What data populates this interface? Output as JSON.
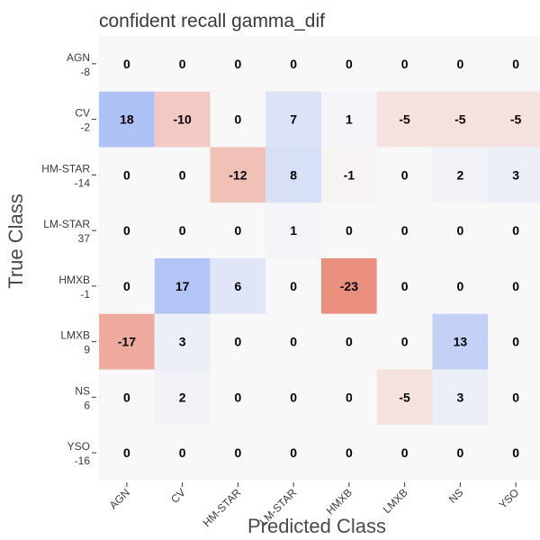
{
  "chart_data": {
    "type": "heatmap",
    "title": "confident recall gamma_dif",
    "xlabel": "Predicted Class",
    "ylabel": "True Class",
    "x_categories": [
      "AGN",
      "CV",
      "HM-STAR",
      "LM-STAR",
      "HMXB",
      "LMXB",
      "NS",
      "YSO"
    ],
    "y_categories": [
      {
        "name": "AGN",
        "value": "-8"
      },
      {
        "name": "CV",
        "value": "-2"
      },
      {
        "name": "HM-STAR",
        "value": "-14"
      },
      {
        "name": "LM-STAR",
        "value": "37"
      },
      {
        "name": "HMXB",
        "value": "-1"
      },
      {
        "name": "LMXB",
        "value": "9"
      },
      {
        "name": "NS",
        "value": "6"
      },
      {
        "name": "YSO",
        "value": "-16"
      }
    ],
    "values": [
      [
        0,
        0,
        0,
        0,
        0,
        0,
        0,
        0
      ],
      [
        18,
        -10,
        0,
        7,
        1,
        -5,
        -5,
        -5
      ],
      [
        0,
        0,
        -12,
        8,
        -1,
        0,
        2,
        3
      ],
      [
        0,
        0,
        0,
        1,
        0,
        0,
        0,
        0
      ],
      [
        0,
        17,
        6,
        0,
        -23,
        0,
        0,
        0
      ],
      [
        -17,
        3,
        0,
        0,
        0,
        0,
        13,
        0
      ],
      [
        0,
        2,
        0,
        0,
        0,
        -5,
        3,
        0
      ],
      [
        0,
        0,
        0,
        0,
        0,
        0,
        0,
        0
      ]
    ],
    "color_scale": {
      "negative": "#e8806e",
      "zero": "#f8f8f8",
      "positive": "#8faaf5",
      "max_abs": 26
    },
    "grid": false,
    "legend": "none"
  }
}
